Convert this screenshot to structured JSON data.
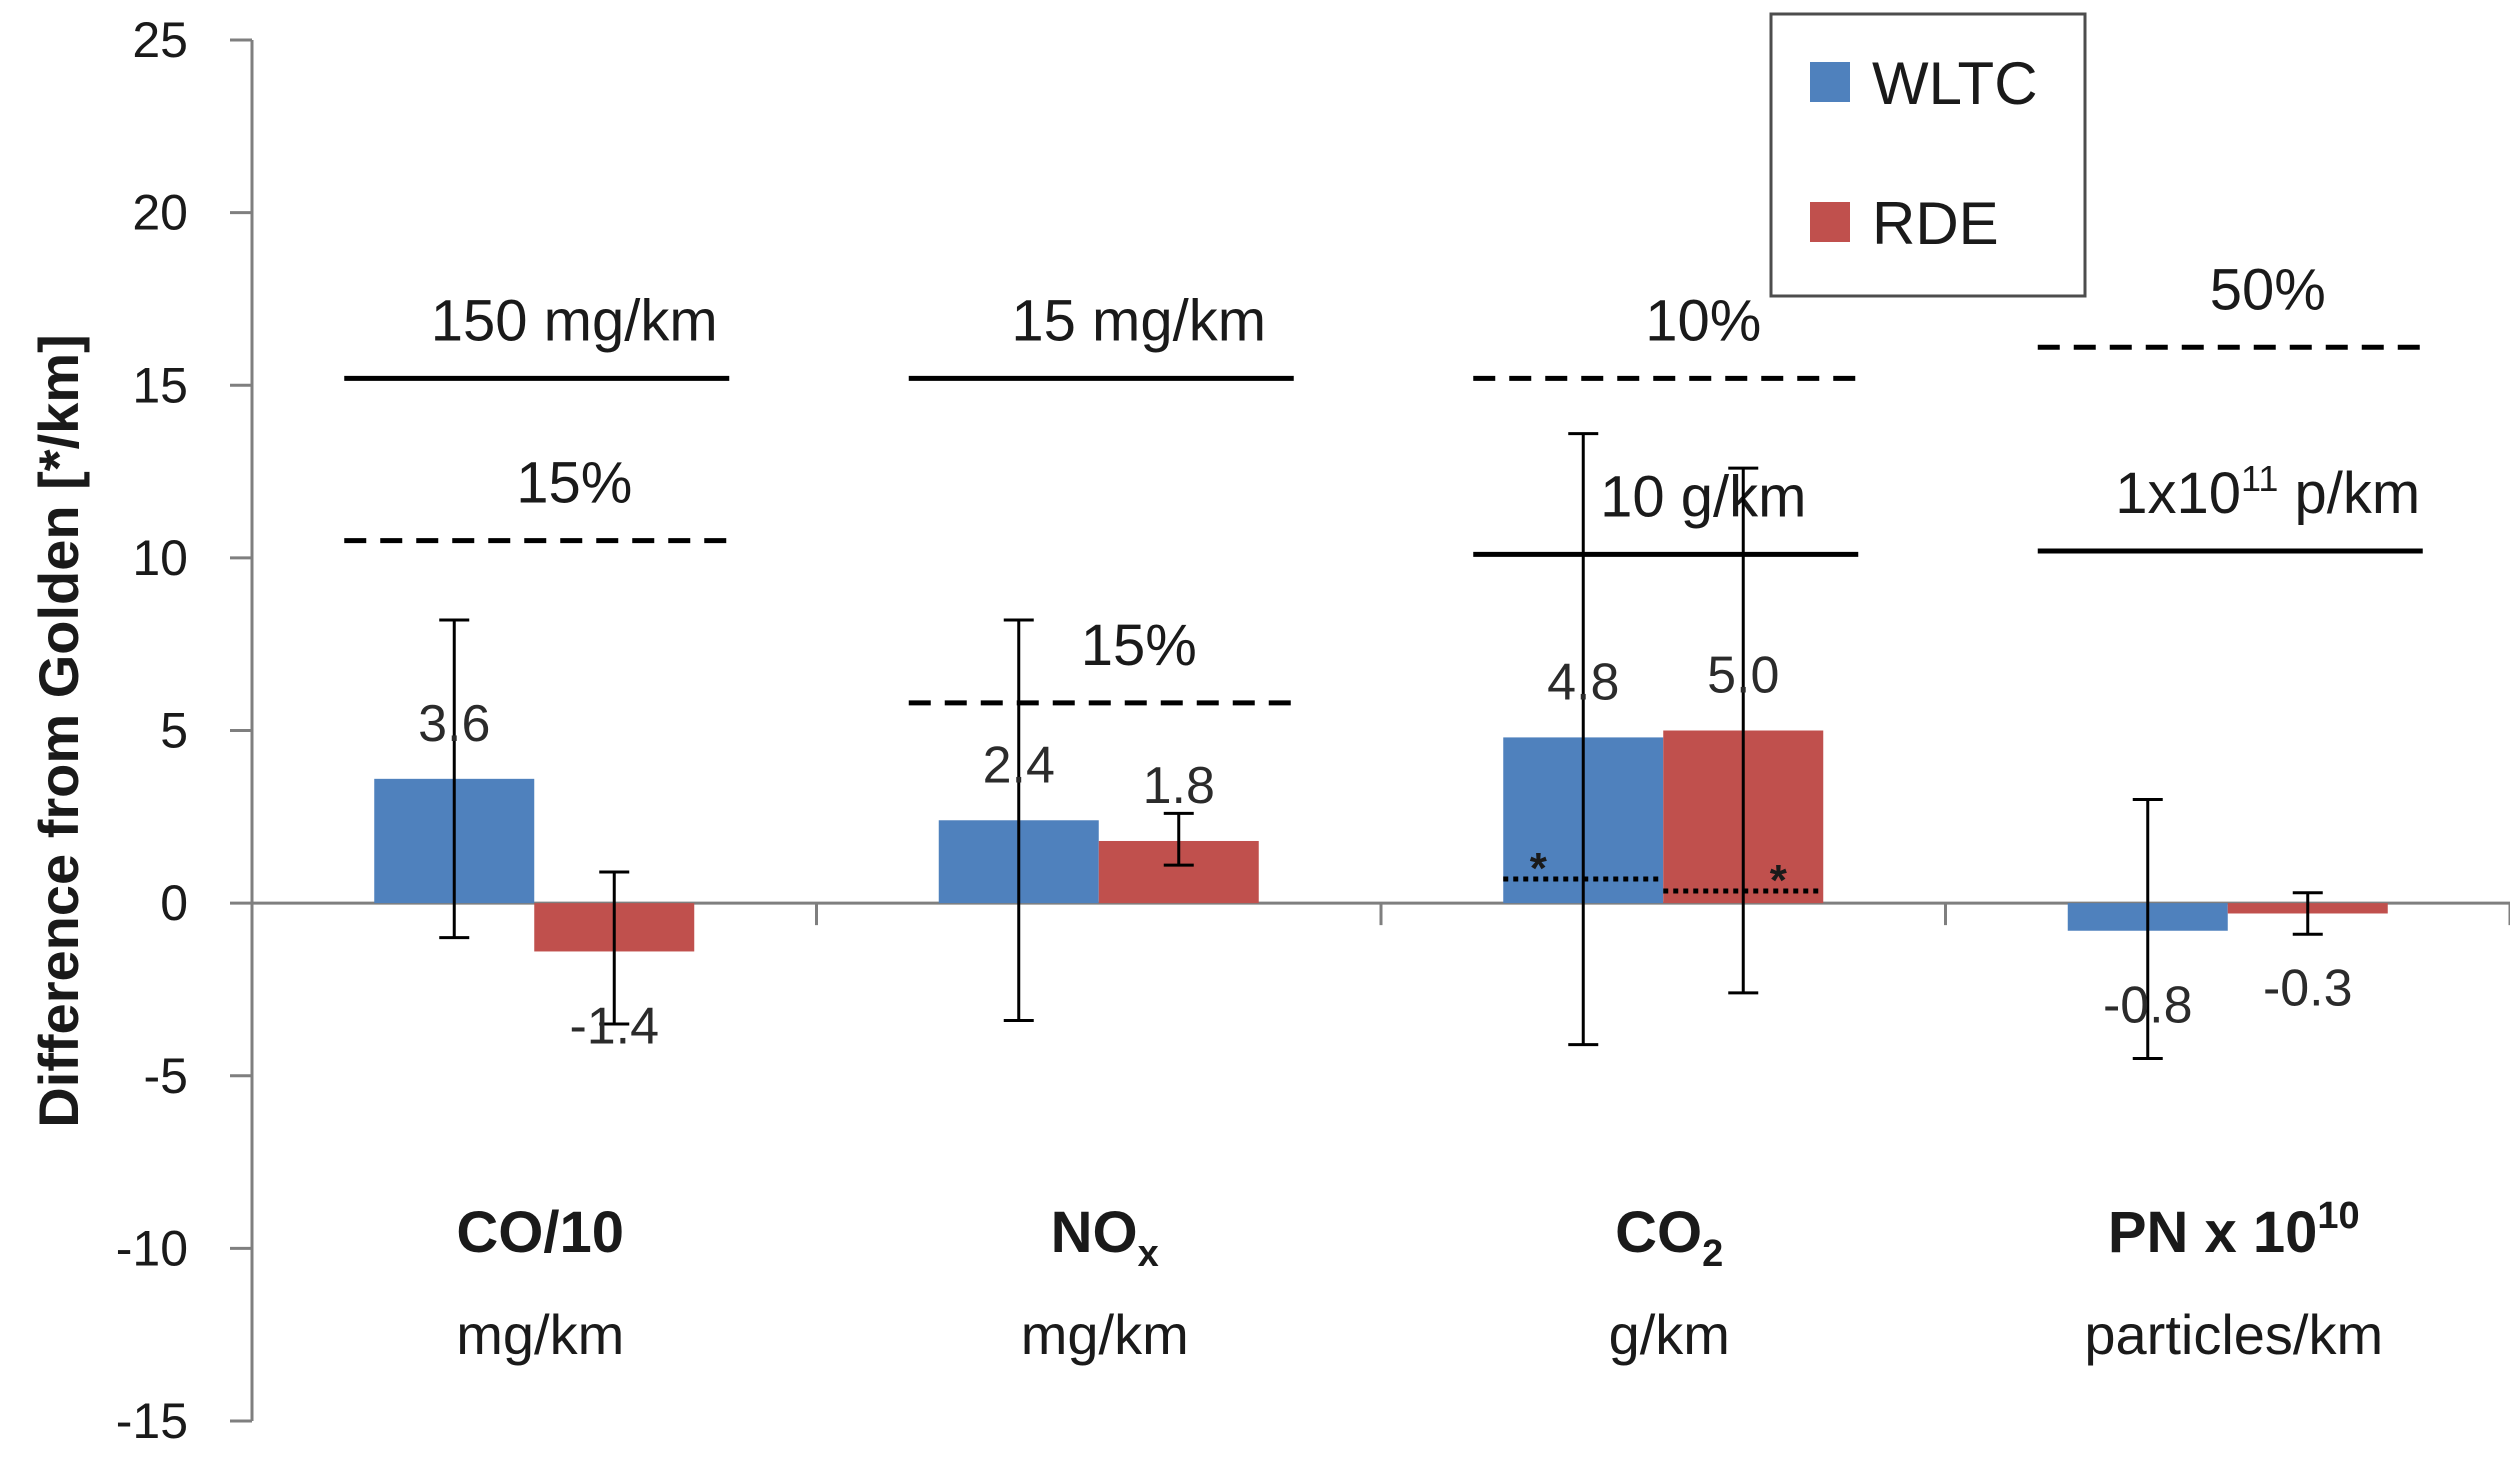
{
  "chart_data": {
    "type": "bar",
    "title": "",
    "ylabel": "Difference from Golden [*/km]",
    "xlabel": "",
    "ylim": [
      -15,
      25
    ],
    "yticks": [
      "25",
      "20",
      "15",
      "10",
      "5",
      "0",
      "-5",
      "-10",
      "-15"
    ],
    "ytick_values": [
      25,
      20,
      15,
      10,
      5,
      0,
      -5,
      -10,
      -15
    ],
    "categories": [
      {
        "name_main": "CO/10",
        "name_sub": "",
        "name_sup": "",
        "unit": "mg/km"
      },
      {
        "name_main": "NO",
        "name_sub": "x",
        "name_sup": "",
        "unit": "mg/km"
      },
      {
        "name_main": "CO",
        "name_sub": "2",
        "name_sup": "",
        "unit": "g/km"
      },
      {
        "name_main": "PN x 10",
        "name_sub": "",
        "name_sup": "10",
        "unit": "particles/km"
      }
    ],
    "series": [
      {
        "name": "WLTC",
        "color": "#4f81bd",
        "values": [
          3.6,
          2.4,
          4.8,
          -0.8
        ],
        "labels": [
          "3.6",
          "2.4",
          "4.8",
          "-0.8"
        ],
        "err_low": [
          -1.0,
          -3.4,
          -4.1,
          -4.5
        ],
        "err_high": [
          8.2,
          8.2,
          13.6,
          3.0
        ]
      },
      {
        "name": "RDE",
        "color": "#c0504d",
        "values": [
          -1.4,
          1.8,
          5.0,
          -0.3
        ],
        "labels": [
          "-1.4",
          "1.8",
          "5.0",
          "-0.3"
        ],
        "err_low": [
          -3.5,
          1.1,
          -2.6,
          -0.9
        ],
        "err_high": [
          0.9,
          2.6,
          12.6,
          0.3
        ]
      }
    ],
    "limits": [
      {
        "category": 0,
        "style": "solid",
        "value": 15.2,
        "label": "150 mg/km",
        "sup": "",
        "suffix": ""
      },
      {
        "category": 0,
        "style": "dashed",
        "value": 10.5,
        "label": "15%",
        "sup": "",
        "suffix": ""
      },
      {
        "category": 1,
        "style": "solid",
        "value": 15.2,
        "label": "15 mg/km",
        "sup": "",
        "suffix": ""
      },
      {
        "category": 1,
        "style": "dashed",
        "value": 5.8,
        "label": "15%",
        "sup": "",
        "suffix": ""
      },
      {
        "category": 2,
        "style": "dashed",
        "value": 15.2,
        "label": "10%",
        "sup": "",
        "suffix": ""
      },
      {
        "category": 2,
        "style": "solid",
        "value": 10.1,
        "label": "10 g/km",
        "sup": "",
        "suffix": ""
      },
      {
        "category": 3,
        "style": "dashed",
        "value": 16.1,
        "label": "50%",
        "sup": "",
        "suffix": ""
      },
      {
        "category": 3,
        "style": "solid",
        "value": 10.2,
        "label": "1x10",
        "sup": "11",
        "suffix": " p/km"
      }
    ],
    "markers": [
      {
        "category": 2,
        "series": 0,
        "style": "dotted",
        "value": 0.7,
        "label": "*"
      },
      {
        "category": 2,
        "series": 1,
        "style": "dotted",
        "value": 0.35,
        "label": "*"
      }
    ],
    "legend_position": "top-right",
    "grid": false
  }
}
